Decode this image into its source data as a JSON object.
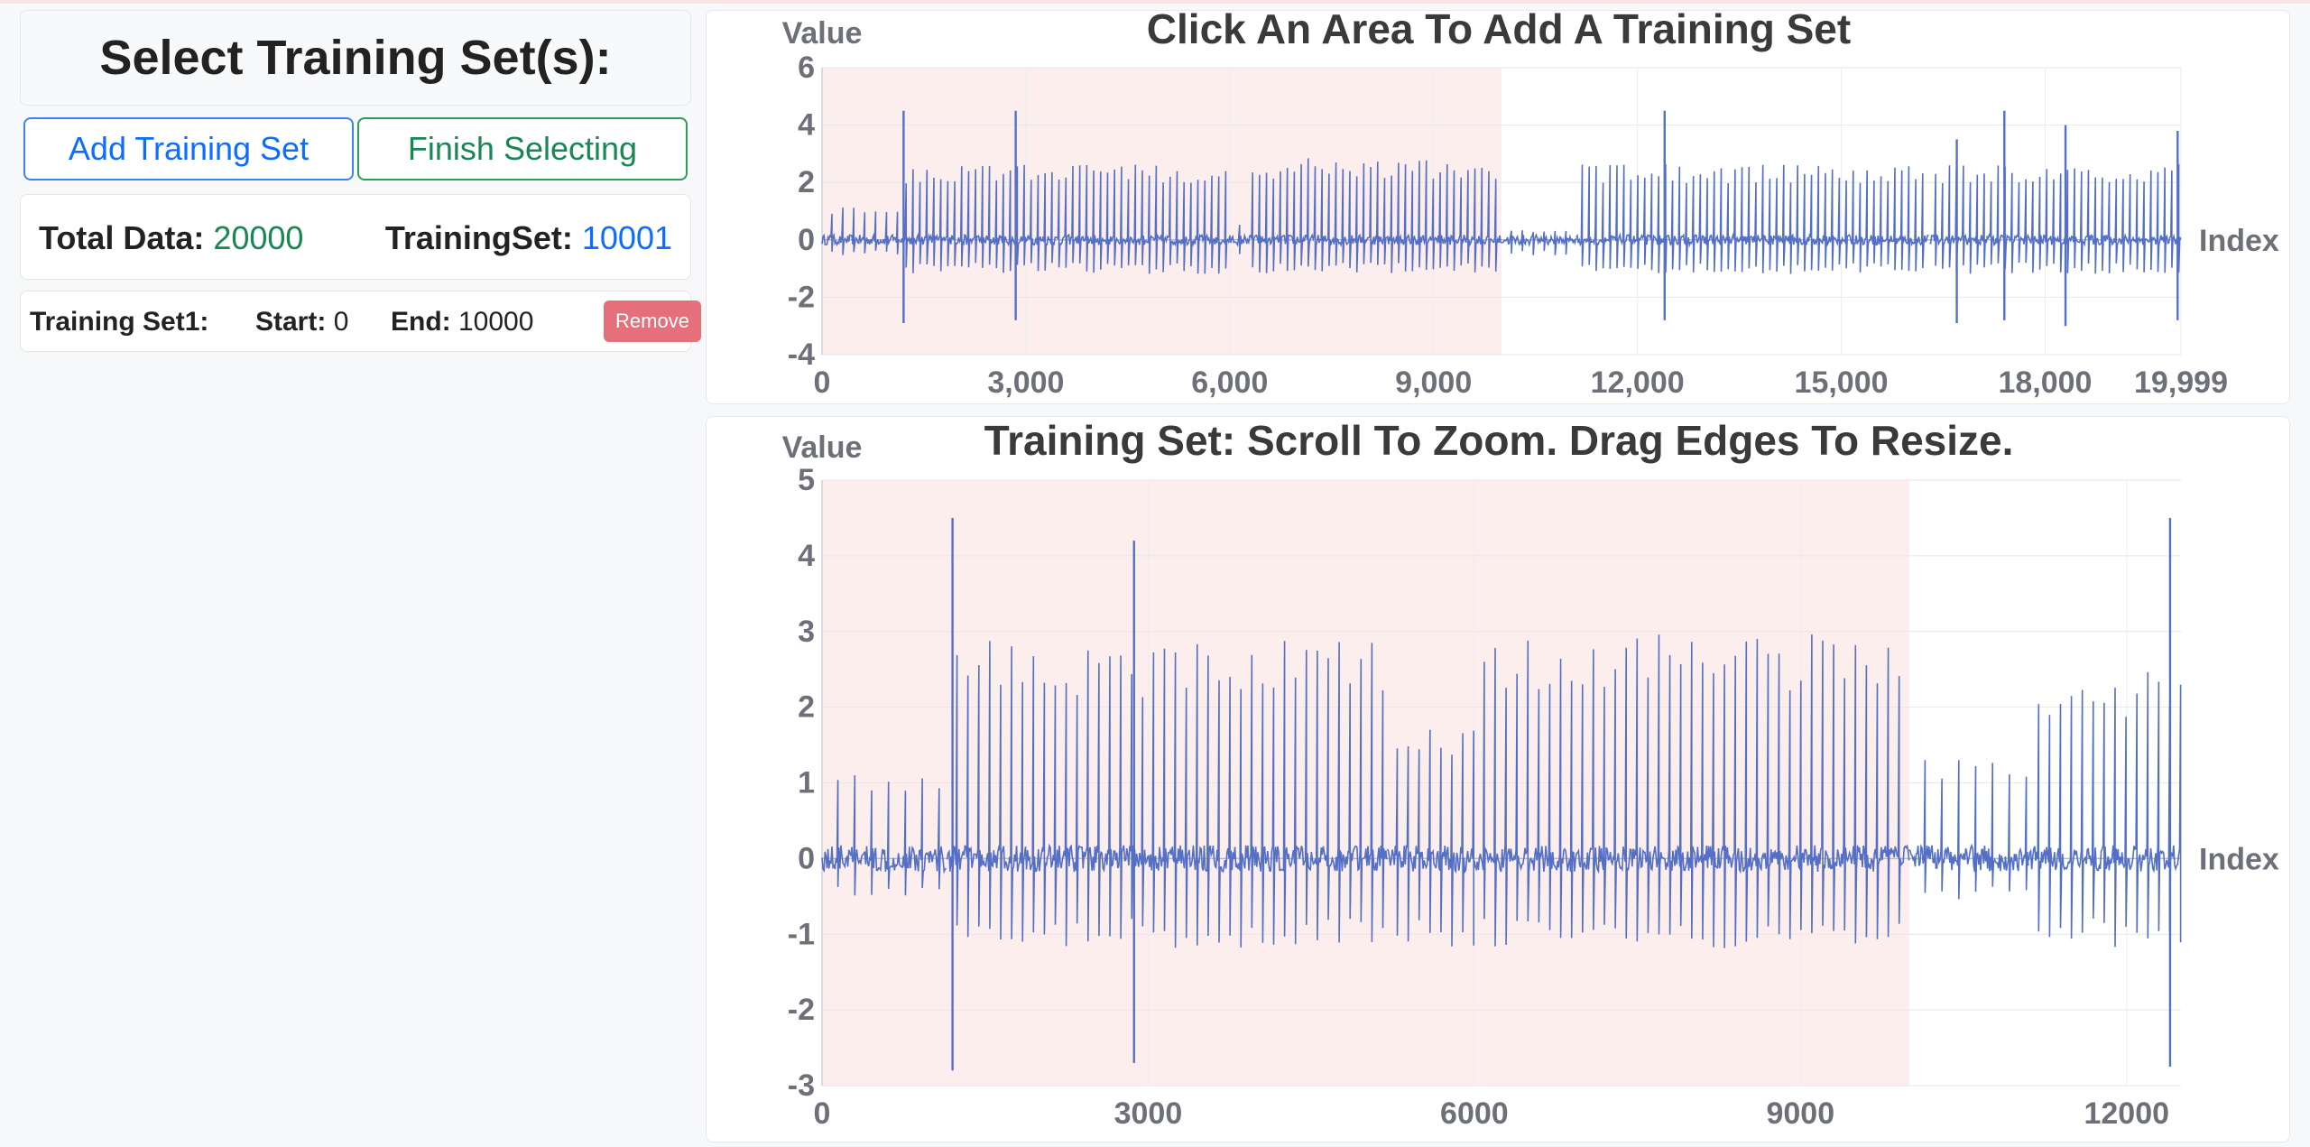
{
  "sidebar": {
    "title": "Select Training Set(s):",
    "add_button": "Add Training Set",
    "finish_button": "Finish Selecting",
    "stats": {
      "total_label": "Total Data:",
      "total_value": "20000",
      "training_label": "TrainingSet:",
      "training_value": "10001"
    },
    "training_sets": [
      {
        "label": "Training Set1:",
        "start_label": "Start:",
        "start_value": "0",
        "end_label": "End:",
        "end_value": "10000",
        "remove_label": "Remove"
      }
    ]
  },
  "colors": {
    "series": "#5470c6",
    "selection": "#fdecec",
    "green": "#198754",
    "blue": "#0d6efd",
    "remove": "#e5707c"
  },
  "chart_data": [
    {
      "type": "line",
      "title": "Click An Area To Add A Training Set",
      "ylabel": "Value",
      "xlabel": "Index",
      "xlim": [
        0,
        19999
      ],
      "ylim": [
        -4,
        6
      ],
      "xticks": [
        "0",
        "3,000",
        "6,000",
        "9,000",
        "12,000",
        "15,000",
        "18,000",
        "19,999"
      ],
      "xtick_values": [
        0,
        3000,
        6000,
        9000,
        12000,
        15000,
        18000,
        19999
      ],
      "yticks": [
        "6",
        "4",
        "2",
        "0",
        "-2",
        "-4"
      ],
      "ytick_values": [
        6,
        4,
        2,
        0,
        -2,
        -4
      ],
      "selection": [
        0,
        10000
      ],
      "segments": [
        {
          "from": 0,
          "to": 1150,
          "amp": 1.0
        },
        {
          "from": 1150,
          "to": 6000,
          "amp": 2.3
        },
        {
          "from": 6000,
          "to": 6250,
          "amp": 0.5
        },
        {
          "from": 6250,
          "to": 10000,
          "amp": 2.5
        },
        {
          "from": 10000,
          "to": 11100,
          "amp": 0.3
        },
        {
          "from": 11100,
          "to": 16300,
          "amp": 2.3
        },
        {
          "from": 16300,
          "to": 19999,
          "amp": 2.3
        }
      ],
      "spikes": [
        {
          "x": 1200,
          "high": 4.5,
          "low": -2.9
        },
        {
          "x": 2850,
          "high": 4.5,
          "low": -2.8
        },
        {
          "x": 12400,
          "high": 4.5,
          "low": -2.8
        },
        {
          "x": 16700,
          "high": 3.5,
          "low": -2.9
        },
        {
          "x": 17400,
          "high": 4.5,
          "low": -2.8
        },
        {
          "x": 18300,
          "high": 4.0,
          "low": -3.0
        },
        {
          "x": 19950,
          "high": 3.8,
          "low": -2.8
        }
      ]
    },
    {
      "type": "line",
      "title": "Training Set: Scroll To Zoom. Drag Edges To Resize.",
      "ylabel": "Value",
      "xlabel": "Index",
      "xlim": [
        0,
        12500
      ],
      "ylim": [
        -3,
        5
      ],
      "xticks": [
        "0",
        "3000",
        "6000",
        "9000",
        "12000"
      ],
      "xtick_values": [
        0,
        3000,
        6000,
        9000,
        12000
      ],
      "yticks": [
        "5",
        "4",
        "3",
        "2",
        "1",
        "0",
        "-1",
        "-2",
        "-3"
      ],
      "ytick_values": [
        5,
        4,
        3,
        2,
        1,
        0,
        -1,
        -2,
        -3
      ],
      "selection": [
        0,
        10000
      ],
      "segments": [
        {
          "from": 0,
          "to": 1150,
          "amp": 1.0
        },
        {
          "from": 1150,
          "to": 5200,
          "amp": 2.5
        },
        {
          "from": 5200,
          "to": 6000,
          "amp": 1.6
        },
        {
          "from": 6000,
          "to": 10000,
          "amp": 2.6
        },
        {
          "from": 10000,
          "to": 11100,
          "amp": 1.2
        },
        {
          "from": 11100,
          "to": 12500,
          "amp": 2.2
        }
      ],
      "spikes": [
        {
          "x": 1200,
          "high": 4.5,
          "low": -2.8
        },
        {
          "x": 2870,
          "high": 4.2,
          "low": -2.7
        },
        {
          "x": 12400,
          "high": 4.5,
          "low": -2.75
        }
      ]
    }
  ]
}
